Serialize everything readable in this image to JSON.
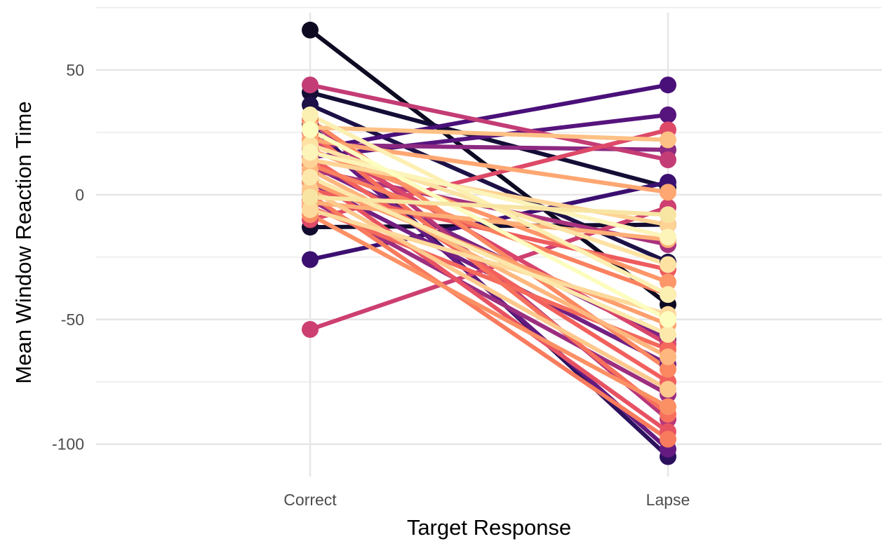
{
  "chart_data": {
    "type": "line",
    "title": "",
    "xlabel": "Target Response",
    "ylabel": "Mean Window Reaction Time",
    "categories": [
      "Correct",
      "Lapse"
    ],
    "ylim": [
      -113,
      73
    ],
    "y_ticks": [
      50,
      0,
      -50,
      -100
    ],
    "y_minor_ticks": [
      75,
      25,
      -25,
      -75
    ],
    "grid": true,
    "legend": "none",
    "point_markers": true,
    "palette": "magma",
    "series": [
      {
        "color": "#0d0a22",
        "values": [
          66,
          -44
        ]
      },
      {
        "color": "#140e36",
        "values": [
          41,
          3
        ]
      },
      {
        "color": "#1d1147",
        "values": [
          36,
          -27
        ]
      },
      {
        "color": "#120c2e",
        "values": [
          -13,
          -12
        ]
      },
      {
        "color": "#2c115f",
        "values": [
          28,
          -105
        ]
      },
      {
        "color": "#3b0f70",
        "values": [
          -26,
          5
        ]
      },
      {
        "color": "#4a1079",
        "values": [
          18,
          44
        ]
      },
      {
        "color": "#56147d",
        "values": [
          15,
          32
        ]
      },
      {
        "color": "#641a80",
        "values": [
          25,
          -102
        ]
      },
      {
        "color": "#721f81",
        "values": [
          5,
          -68
        ]
      },
      {
        "color": "#7d2482",
        "values": [
          12,
          -58
        ]
      },
      {
        "color": "#8c2981",
        "values": [
          20,
          18
        ]
      },
      {
        "color": "#9b2e7f",
        "values": [
          -2,
          -80
        ]
      },
      {
        "color": "#a8327d",
        "values": [
          10,
          -20
        ]
      },
      {
        "color": "#b73779",
        "values": [
          30,
          -90
        ]
      },
      {
        "color": "#c43c75",
        "values": [
          44,
          14
        ]
      },
      {
        "color": "#cd3f71",
        "values": [
          -54,
          -5
        ]
      },
      {
        "color": "#d8456c",
        "values": [
          22,
          -60
        ]
      },
      {
        "color": "#de4968",
        "values": [
          -10,
          26
        ]
      },
      {
        "color": "#e75263",
        "values": [
          8,
          -95
        ]
      },
      {
        "color": "#ee5b5e",
        "values": [
          2,
          -30
        ]
      },
      {
        "color": "#f1605d",
        "values": [
          15,
          -75
        ]
      },
      {
        "color": "#f4695c",
        "values": [
          -5,
          -62
        ]
      },
      {
        "color": "#f7705c",
        "values": [
          25,
          -88
        ]
      },
      {
        "color": "#f97b5d",
        "values": [
          0,
          -98
        ]
      },
      {
        "color": "#fa815f",
        "values": [
          12,
          -40
        ]
      },
      {
        "color": "#fb8861",
        "values": [
          30,
          -70
        ]
      },
      {
        "color": "#fc9065",
        "values": [
          -8,
          -85
        ]
      },
      {
        "color": "#fd9668",
        "values": [
          18,
          -35
        ]
      },
      {
        "color": "#fe9f6d",
        "values": [
          5,
          -52
        ]
      },
      {
        "color": "#fea772",
        "values": [
          22,
          1
        ]
      },
      {
        "color": "#feaf77",
        "values": [
          -3,
          -18
        ]
      },
      {
        "color": "#feb77e",
        "values": [
          10,
          -65
        ]
      },
      {
        "color": "#fec185",
        "values": [
          27,
          22
        ]
      },
      {
        "color": "#fec98d",
        "values": [
          2,
          -78
        ]
      },
      {
        "color": "#fed395",
        "values": [
          14,
          -12
        ]
      },
      {
        "color": "#fdd99b",
        "values": [
          -6,
          -48
        ]
      },
      {
        "color": "#fde2a3",
        "values": [
          20,
          -28
        ]
      },
      {
        "color": "#fce8aa",
        "values": [
          7,
          -56
        ]
      },
      {
        "color": "#fcefb2",
        "values": [
          32,
          -40
        ]
      },
      {
        "color": "#fcf4b9",
        "values": [
          17,
          -17
        ]
      },
      {
        "color": "#fcfdbf",
        "values": [
          26,
          -50
        ]
      },
      {
        "color": "#f8e5a3",
        "values": [
          -1,
          -8
        ]
      }
    ]
  }
}
